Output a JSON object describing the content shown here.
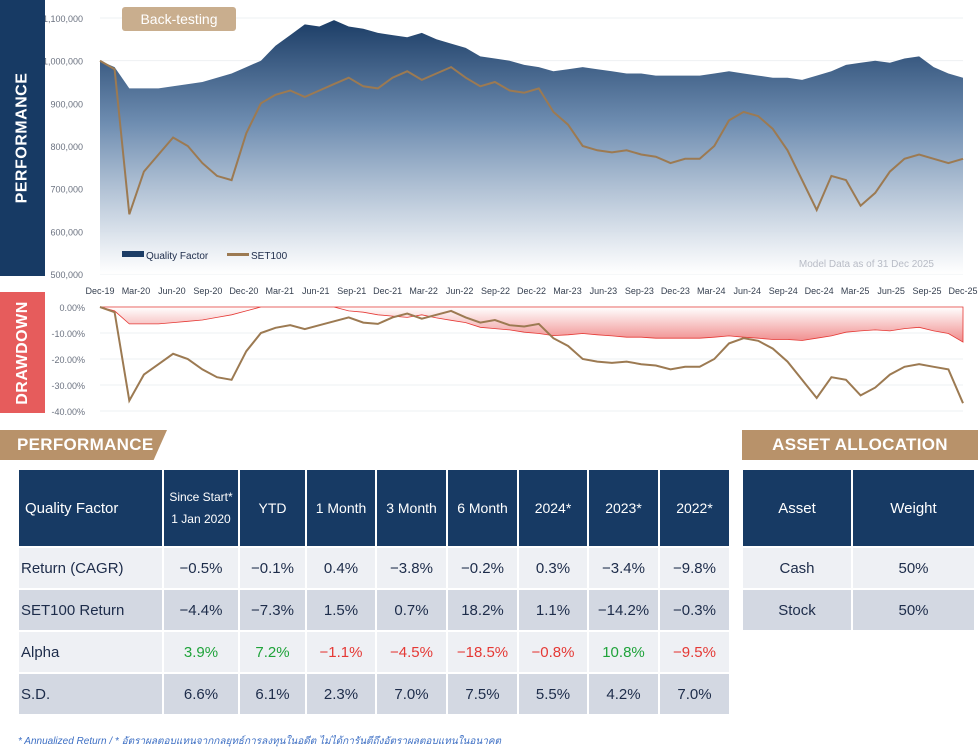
{
  "side_labels": {
    "performance": "PERFORMANCE",
    "drawdown": "DRAWDOWN"
  },
  "badge": "Back-testing",
  "model_note": "Model Data as of 31 Dec 2025",
  "chart_data": [
    {
      "type": "area",
      "name": "performance",
      "y_ticks": [
        "1,100,000",
        "1,000,000",
        "900,000",
        "800,000",
        "700,000",
        "600,000",
        "500,000"
      ],
      "ylim": [
        500000,
        1100000
      ],
      "x_ticks": [
        "Dec-19",
        "Mar-20",
        "Jun-20",
        "Sep-20",
        "Dec-20",
        "Mar-21",
        "Jun-21",
        "Sep-21",
        "Dec-21",
        "Mar-22",
        "Jun-22",
        "Sep-22",
        "Dec-22",
        "Mar-23",
        "Jun-23",
        "Sep-23",
        "Dec-23",
        "Mar-24",
        "Jun-24",
        "Sep-24",
        "Dec-24",
        "Mar-25",
        "Jun-25",
        "Sep-25",
        "Dec-25"
      ],
      "legend": [
        "Quality Factor",
        "SET100"
      ],
      "series": [
        {
          "name": "Quality Factor",
          "color": "#173a64",
          "values": [
            1000000,
            985000,
            935000,
            935000,
            935000,
            940000,
            945000,
            950000,
            960000,
            970000,
            985000,
            1000000,
            1035000,
            1060000,
            1085000,
            1080000,
            1095000,
            1080000,
            1075000,
            1065000,
            1060000,
            1055000,
            1065000,
            1050000,
            1040000,
            1030000,
            1010000,
            1005000,
            1000000,
            990000,
            985000,
            975000,
            980000,
            985000,
            980000,
            975000,
            970000,
            970000,
            965000,
            965000,
            965000,
            965000,
            970000,
            975000,
            970000,
            965000,
            960000,
            960000,
            955000,
            965000,
            975000,
            990000,
            995000,
            1000000,
            995000,
            1005000,
            1010000,
            985000,
            970000,
            960000
          ]
        },
        {
          "name": "SET100",
          "color": "#9c7a52",
          "values": [
            1000000,
            980000,
            640000,
            740000,
            780000,
            820000,
            800000,
            760000,
            730000,
            720000,
            830000,
            900000,
            920000,
            930000,
            915000,
            930000,
            945000,
            960000,
            940000,
            935000,
            960000,
            975000,
            955000,
            970000,
            985000,
            960000,
            940000,
            950000,
            930000,
            925000,
            935000,
            880000,
            850000,
            800000,
            790000,
            785000,
            790000,
            780000,
            775000,
            760000,
            770000,
            770000,
            800000,
            860000,
            880000,
            870000,
            840000,
            790000,
            720000,
            650000,
            730000,
            720000,
            660000,
            690000,
            740000,
            770000,
            780000,
            770000,
            760000,
            770000
          ]
        }
      ]
    },
    {
      "type": "area",
      "name": "drawdown",
      "y_ticks": [
        "0.00%",
        "-10.00%",
        "-20.00%",
        "-30.00%",
        "-40.00%"
      ],
      "ylim": [
        -40,
        0
      ],
      "x_ticks": [],
      "series": [
        {
          "name": "Quality Factor",
          "color": "#e53935",
          "values": [
            0,
            -1.5,
            -6.5,
            -6.5,
            -6.5,
            -6,
            -5.5,
            -5,
            -4,
            -3,
            -1.5,
            0,
            0,
            0,
            0,
            0,
            0,
            -1.5,
            -2,
            -3,
            -3.5,
            -4,
            -3,
            -4.2,
            -5.1,
            -6,
            -7.8,
            -8.3,
            -8.8,
            -9.7,
            -10.2,
            -11,
            -10.7,
            -10.2,
            -10.7,
            -11.1,
            -11.6,
            -11.6,
            -12,
            -12,
            -12,
            -12,
            -11.6,
            -11.1,
            -11.6,
            -12,
            -12.5,
            -12.5,
            -12.9,
            -12,
            -11.1,
            -9.7,
            -9.2,
            -8.8,
            -9.2,
            -8.3,
            -7.8,
            -9.2,
            -10.2,
            -13.5
          ]
        },
        {
          "name": "SET100",
          "color": "#9c7a52",
          "values": [
            0,
            -2,
            -36,
            -26,
            -22,
            -18,
            -20,
            -24,
            -27,
            -28,
            -17,
            -10,
            -8,
            -7,
            -8.5,
            -7,
            -5.5,
            -4,
            -6,
            -6.5,
            -4,
            -2.5,
            -4.5,
            -3,
            -1.5,
            -4,
            -6,
            -5,
            -7,
            -7.5,
            -6.5,
            -12,
            -15,
            -20,
            -21,
            -21.5,
            -21,
            -22,
            -22.5,
            -24,
            -23,
            -23,
            -20,
            -14,
            -12,
            -13,
            -16,
            -21,
            -28,
            -35,
            -27,
            -28,
            -34,
            -31,
            -26,
            -23,
            -22,
            -23,
            -24,
            -37
          ]
        }
      ]
    }
  ],
  "performance_section": {
    "title": "PERFORMANCE",
    "headers": [
      "Quality Factor",
      "Since Start*",
      "1 Jan 2020",
      "YTD",
      "1 Month",
      "3 Month",
      "6 Month",
      "2024*",
      "2023*",
      "2022*"
    ],
    "rows": [
      {
        "label": "Return (CAGR)",
        "cells": [
          "−0.5%",
          "−0.1%",
          "0.4%",
          "−3.8%",
          "−0.2%",
          "0.3%",
          "−3.4%",
          "−9.8%"
        ]
      },
      {
        "label": "SET100 Return",
        "cells": [
          "−4.4%",
          "−7.3%",
          "1.5%",
          "0.7%",
          "18.2%",
          "1.1%",
          "−14.2%",
          "−0.3%"
        ]
      },
      {
        "label": "Alpha",
        "cells": [
          "3.9%",
          "7.2%",
          "−1.1%",
          "−4.5%",
          "−18.5%",
          "−0.8%",
          "10.8%",
          "−9.5%"
        ]
      },
      {
        "label": "S.D.",
        "cells": [
          "6.6%",
          "6.1%",
          "2.3%",
          "7.0%",
          "7.5%",
          "5.5%",
          "4.2%",
          "7.0%"
        ]
      }
    ]
  },
  "allocation_section": {
    "title": "ASSET ALLOCATION",
    "headers": [
      "Asset",
      "Weight"
    ],
    "rows": [
      {
        "asset": "Cash",
        "weight": "50%"
      },
      {
        "asset": "Stock",
        "weight": "50%"
      }
    ]
  },
  "footnote": "* Annualized Return / * อัตราผลตอบแทนจากกลยุทธ์การลงทุนในอดีต ไม่ได้การันตีถึงอัตราผลตอบแทนในอนาคต"
}
